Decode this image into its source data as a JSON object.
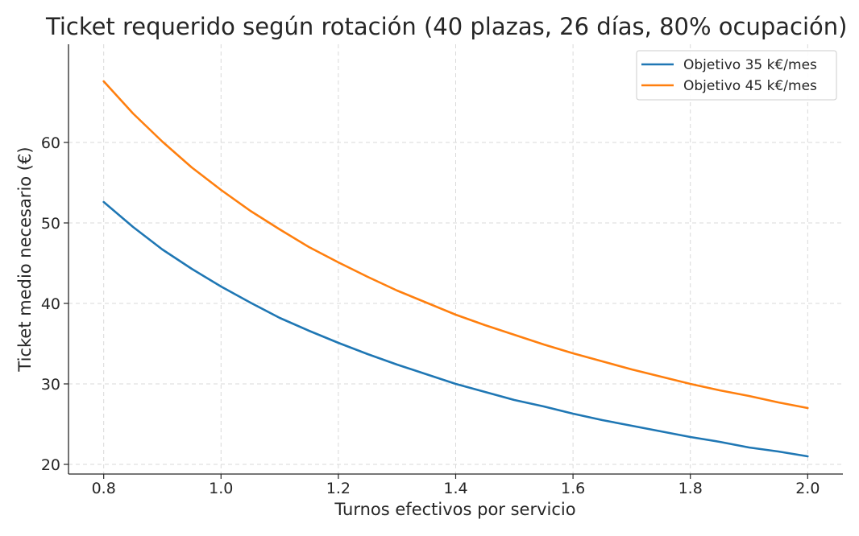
{
  "chart_data": {
    "type": "line",
    "title": "Ticket requerido según rotación (40 plazas, 26 días, 80% ocupación)",
    "xlabel": "Turnos efectivos por servicio",
    "ylabel": "Ticket medio necesario (€)",
    "xlim": [
      0.74,
      2.06
    ],
    "ylim": [
      18.8,
      72.2
    ],
    "xticks": [
      0.8,
      1.0,
      1.2,
      1.4,
      1.6,
      1.8,
      2.0
    ],
    "xtick_labels": [
      "0.8",
      "1.0",
      "1.2",
      "1.4",
      "1.6",
      "1.8",
      "2.0"
    ],
    "yticks": [
      20,
      30,
      40,
      50,
      60
    ],
    "ytick_labels": [
      "20",
      "30",
      "40",
      "50",
      "60"
    ],
    "grid": true,
    "legend_position": "top-right",
    "series": [
      {
        "name": "Objetivo 35 k€/mes",
        "color": "#1f77b4",
        "x": [
          0.8,
          0.85,
          0.9,
          0.95,
          1.0,
          1.05,
          1.1,
          1.15,
          1.2,
          1.25,
          1.3,
          1.35,
          1.4,
          1.45,
          1.5,
          1.55,
          1.6,
          1.65,
          1.7,
          1.75,
          1.8,
          1.85,
          1.9,
          1.95,
          2.0
        ],
        "y": [
          52.6,
          49.5,
          46.7,
          44.3,
          42.1,
          40.1,
          38.2,
          36.6,
          35.1,
          33.7,
          32.4,
          31.2,
          30.0,
          29.0,
          28.0,
          27.2,
          26.3,
          25.5,
          24.8,
          24.1,
          23.4,
          22.8,
          22.1,
          21.6,
          21.0
        ]
      },
      {
        "name": "Objetivo 45 k€/mes",
        "color": "#ff7f0e",
        "x": [
          0.8,
          0.85,
          0.9,
          0.95,
          1.0,
          1.05,
          1.1,
          1.15,
          1.2,
          1.25,
          1.3,
          1.35,
          1.4,
          1.45,
          1.5,
          1.55,
          1.6,
          1.65,
          1.7,
          1.75,
          1.8,
          1.85,
          1.9,
          1.95,
          2.0
        ],
        "y": [
          67.6,
          63.6,
          60.1,
          56.9,
          54.1,
          51.5,
          49.2,
          47.0,
          45.1,
          43.3,
          41.6,
          40.1,
          38.6,
          37.3,
          36.1,
          34.9,
          33.8,
          32.8,
          31.8,
          30.9,
          30.0,
          29.2,
          28.5,
          27.7,
          27.0
        ]
      }
    ]
  }
}
